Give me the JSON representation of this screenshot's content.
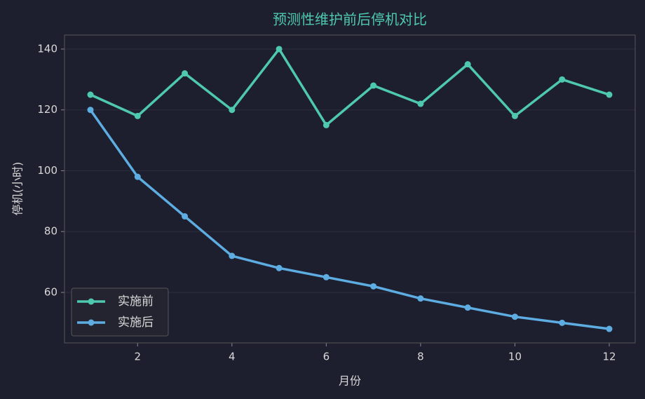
{
  "chart_data": {
    "type": "line",
    "title": "预测性维护前后停机对比",
    "x_label": "月份",
    "y_label": "停机(小时)",
    "x": [
      1,
      2,
      3,
      4,
      5,
      6,
      7,
      8,
      9,
      10,
      11,
      12
    ],
    "series": [
      {
        "name": "实施前",
        "color": "#4ec9b0",
        "values": [
          125,
          118,
          132,
          120,
          140,
          115,
          128,
          122,
          135,
          118,
          130,
          125
        ]
      },
      {
        "name": "实施后",
        "color": "#5dade2",
        "values": [
          120,
          98,
          85,
          72,
          68,
          65,
          62,
          58,
          55,
          52,
          50,
          48
        ]
      }
    ],
    "xlim": [
      0.45,
      12.55
    ],
    "xticks": [
      2,
      4,
      6,
      8,
      10,
      12
    ],
    "ylim": [
      43.4,
      144.6
    ],
    "yticks": [
      60,
      80,
      100,
      120,
      140
    ],
    "grid": true,
    "legend": "lower left"
  }
}
